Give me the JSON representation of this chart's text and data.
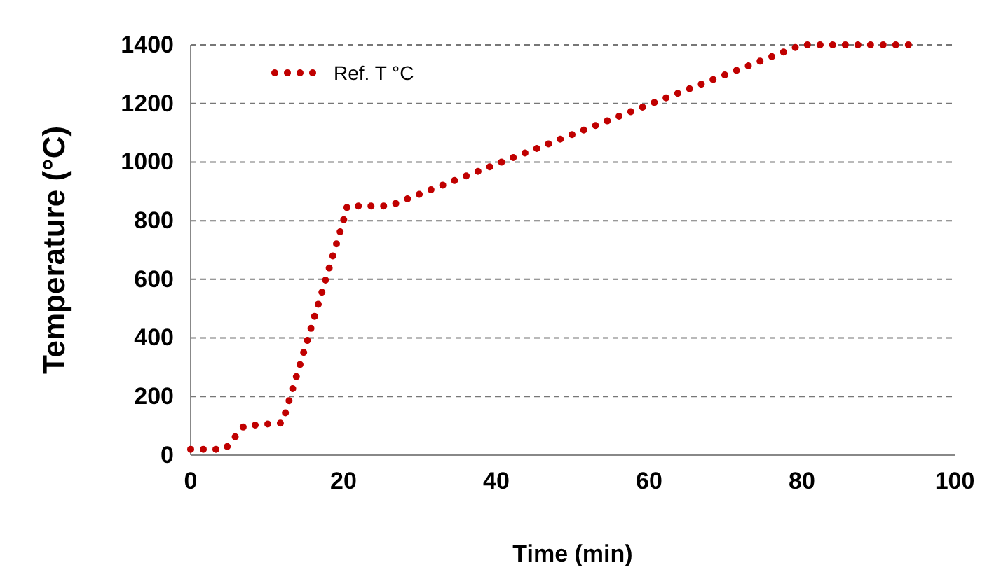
{
  "chart_data": {
    "type": "line",
    "xlabel": "Time (min)",
    "ylabel": "Temperature (°C)",
    "xlim": [
      0,
      100
    ],
    "xticks": [
      0,
      20,
      40,
      60,
      80,
      100
    ],
    "ylim": [
      0,
      1400
    ],
    "yticks": [
      0,
      200,
      400,
      600,
      800,
      1000,
      1200,
      1400
    ],
    "grid": "y",
    "legend": "top left",
    "line_style": "dotted",
    "marker": "none",
    "series": [
      {
        "name": "Ref. T °C",
        "color": "#c00000",
        "x": [
          0,
          4.5,
          7,
          12,
          20,
          20.5,
          26,
          80,
          95
        ],
        "values": [
          20,
          20,
          100,
          110,
          800,
          850,
          850,
          1400,
          1400
        ]
      }
    ]
  }
}
